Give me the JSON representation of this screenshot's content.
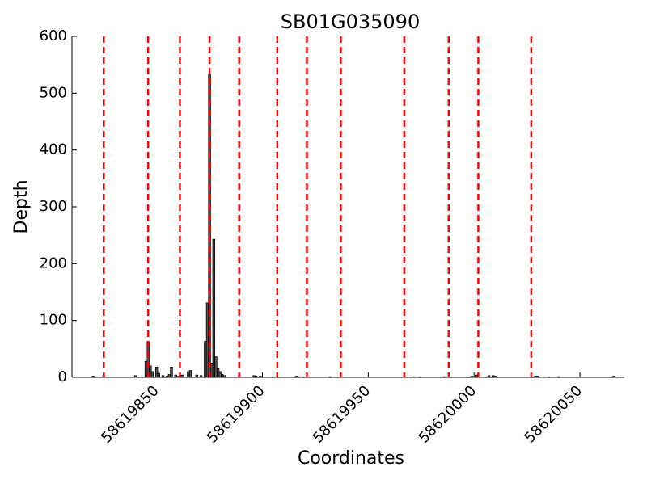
{
  "chart_data": {
    "type": "bar",
    "title": "SB01G035090",
    "x_label": "Coordinates",
    "y_label": "Depth",
    "x": [
      58619820,
      58619825,
      58619840,
      58619845,
      58619846,
      58619847,
      58619848,
      58619850,
      58619851,
      58619853,
      58619855,
      58619856,
      58619857,
      58619859,
      58619860,
      58619862,
      58619865,
      58619866,
      58619869,
      58619871,
      58619873,
      58619874,
      58619875,
      58619876,
      58619877,
      58619878,
      58619879,
      58619880,
      58619881,
      58619882,
      58619889,
      58619896,
      58619897,
      58619899,
      58619906,
      58619916,
      58619918,
      58619932,
      58619972,
      58619986,
      58619999,
      58620001,
      58620007,
      58620009,
      58620010,
      58620029,
      58620030,
      58620033,
      58620040,
      58620066
    ],
    "values": [
      2,
      2,
      3,
      28,
      63,
      20,
      10,
      18,
      7,
      3,
      2,
      5,
      18,
      4,
      2,
      4,
      10,
      12,
      4,
      3,
      63,
      131,
      533,
      25,
      243,
      36,
      15,
      10,
      5,
      3,
      2,
      3,
      2,
      2,
      1,
      2,
      1,
      1,
      1,
      1,
      2,
      4,
      3,
      3,
      2,
      2,
      2,
      1,
      1,
      2
    ],
    "color": "#555555",
    "vlines": {
      "color": "#ff0000",
      "x": [
        58619825,
        58619846,
        58619861,
        58619875,
        58619889,
        58619907,
        58619921,
        58619937,
        58619967,
        58619988,
        58620002,
        58620027
      ]
    },
    "xlim": [
      58619810,
      58620071
    ],
    "xticks": [
      58619850,
      58619900,
      58619950,
      58620000,
      58620050
    ],
    "ylim": [
      0,
      600
    ],
    "yticks": [
      0,
      100,
      200,
      300,
      400,
      500,
      600
    ]
  }
}
